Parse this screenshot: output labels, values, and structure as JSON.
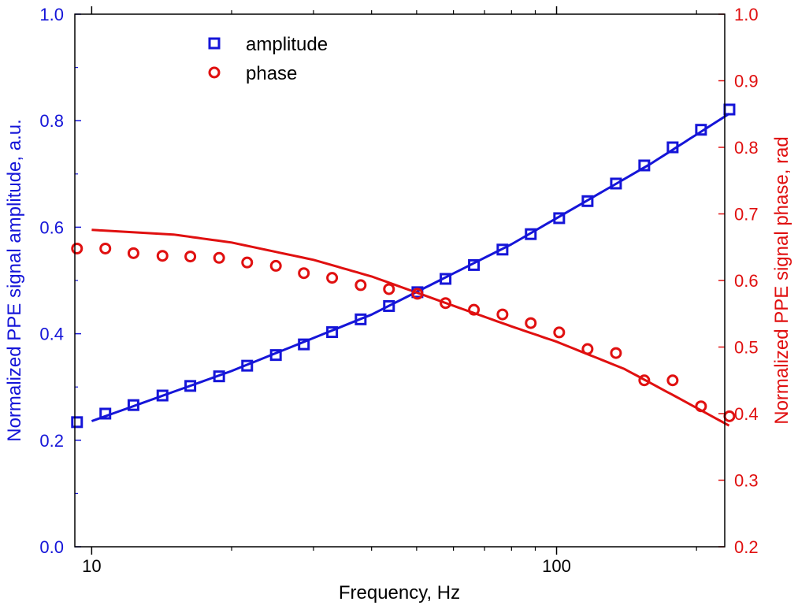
{
  "colors": {
    "amplitude": "#1515d8",
    "phase": "#e01010",
    "axes": "#000000",
    "background": "#ffffff"
  },
  "chart_data": {
    "type": "scatter",
    "xlabel": "Frequency, Hz",
    "ylabel": "Normalized PPE signal amplitude, a.u.",
    "y2label": "Normalized PPE signal phase, rad",
    "xscale": "log",
    "xlim": [
      9.2,
      230
    ],
    "ylim": [
      0.0,
      1.0
    ],
    "y2lim": [
      0.2,
      1.0
    ],
    "x_ticks": [
      {
        "value": 10,
        "label": "10"
      },
      {
        "value": 100,
        "label": "100"
      }
    ],
    "y_ticks": [
      "0.0",
      "0.2",
      "0.4",
      "0.6",
      "0.8",
      "1.0"
    ],
    "y2_ticks": [
      "0.2",
      "0.3",
      "0.4",
      "0.5",
      "0.6",
      "0.7",
      "0.8",
      "0.9",
      "1.0"
    ],
    "legend": {
      "position": "top-left",
      "entries": [
        "amplitude",
        "phase"
      ]
    },
    "series": [
      {
        "name": "amplitude",
        "axis": "left",
        "marker": "square",
        "x": [
          9.3,
          10.7,
          12.3,
          14.2,
          16.3,
          18.8,
          21.6,
          24.9,
          28.6,
          32.9,
          37.9,
          43.6,
          50.2,
          57.7,
          66.4,
          76.5,
          88.0,
          101.3,
          116.6,
          134.2,
          154.4,
          177.7,
          204.5,
          235.4
        ],
        "y": [
          0.234,
          0.25,
          0.266,
          0.284,
          0.302,
          0.32,
          0.34,
          0.36,
          0.38,
          0.403,
          0.427,
          0.452,
          0.478,
          0.503,
          0.529,
          0.558,
          0.587,
          0.617,
          0.649,
          0.682,
          0.716,
          0.75,
          0.783,
          0.821
        ]
      },
      {
        "name": "phase",
        "axis": "right",
        "marker": "circle",
        "x": [
          9.3,
          10.7,
          12.3,
          14.2,
          16.3,
          18.8,
          21.6,
          24.9,
          28.6,
          32.9,
          37.9,
          43.6,
          50.2,
          57.7,
          66.4,
          76.5,
          88.0,
          101.3,
          116.6,
          134.2,
          154.4,
          177.7,
          204.5,
          235.4
        ],
        "y": [
          0.648,
          0.648,
          0.641,
          0.637,
          0.636,
          0.634,
          0.627,
          0.622,
          0.611,
          0.604,
          0.593,
          0.587,
          0.58,
          0.566,
          0.556,
          0.549,
          0.536,
          0.522,
          0.497,
          0.491,
          0.45,
          0.45,
          0.411,
          0.396
        ]
      },
      {
        "name": "",
        "axis": "left",
        "style": "line",
        "x": [
          10,
          20,
          40,
          80,
          160,
          235
        ],
        "y": [
          0.236,
          0.33,
          0.436,
          0.568,
          0.72,
          0.813
        ]
      },
      {
        "name": "",
        "axis": "right",
        "style": "line",
        "x": [
          10,
          15,
          20,
          30,
          40,
          60,
          80,
          100,
          140,
          180,
          235
        ],
        "y": [
          0.676,
          0.669,
          0.657,
          0.631,
          0.606,
          0.562,
          0.531,
          0.508,
          0.467,
          0.426,
          0.382
        ]
      }
    ]
  }
}
